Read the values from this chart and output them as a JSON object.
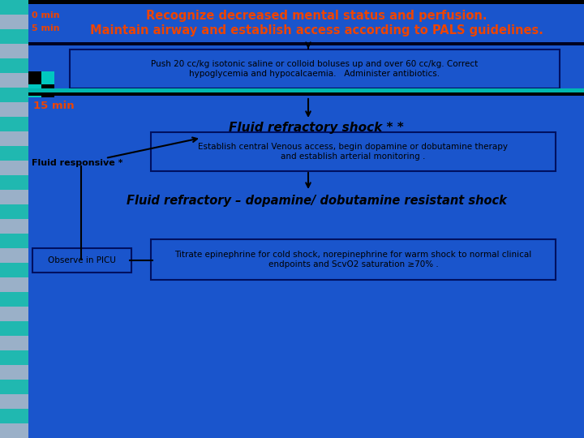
{
  "bg_color": "#1a55cc",
  "left_panel_bg": "#9ab0c8",
  "left_panel_teal": "#20b8b0",
  "title_line1": "Recognize decreased mental status and perfusion.",
  "title_line2": "Maintain airway and establish access according to PALS guidelines.",
  "label_0min": "0 min",
  "label_5min": "5 min",
  "label_15min": "15 min",
  "label_fluid_responsive": "Fluid responsive *",
  "label_observe": "Observe in PICU",
  "box1_text": "Push 20 cc/kg isotonic saline or colloid boluses up and over 60 cc/kg. Correct\nhypoglycemia and hypocalcaemia.   Administer antibiotics.",
  "label_fluid_refractory1": "Fluid refractory shock * *",
  "box2_text": "Establish central Venous access, begin dopamine or dobutamine therapy\nand establish arterial monitoring .",
  "label_fluid_refractory2": "Fluid refractory – dopamine/ dobutamine resistant shock",
  "box3_text": "Titrate epinephrine for cold shock, norepinephrine for warm shock to normal clinical\nendpoints and ScvO2 saturation ≥70% .",
  "orange_color": "#ee4400",
  "box_edge_color": "#001060",
  "teal_bar_color": "#00b8b0",
  "black": "#000000"
}
